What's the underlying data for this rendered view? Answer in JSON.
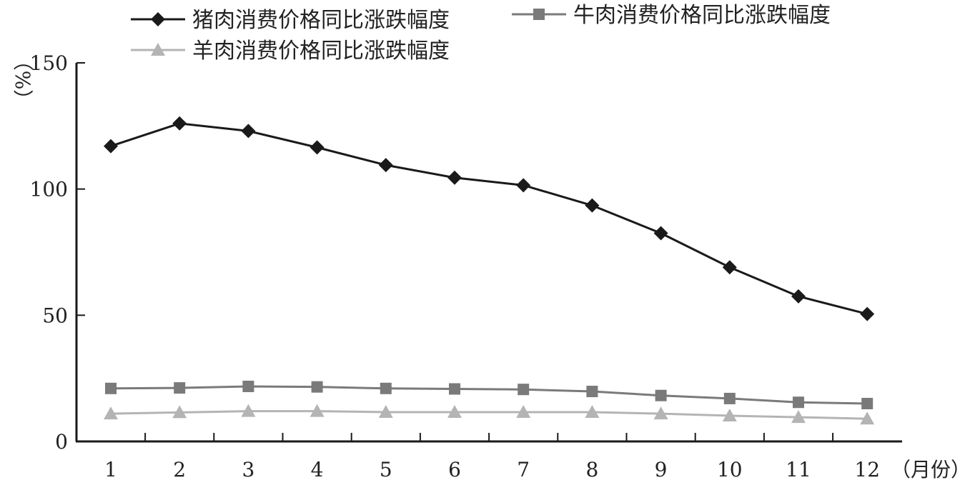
{
  "chart_data": {
    "type": "line",
    "title": "",
    "xlabel": "（月份）",
    "ylabel": "（%）",
    "ylim": [
      0,
      150
    ],
    "yticks": [
      0,
      50,
      100,
      150
    ],
    "categories": [
      "1",
      "2",
      "3",
      "4",
      "5",
      "6",
      "7",
      "8",
      "9",
      "10",
      "11",
      "12"
    ],
    "legend_position": "top-left",
    "grid": false,
    "series": [
      {
        "name": "猪肉消费价格同比涨跌幅度",
        "marker": "diamond",
        "color": "#1a1a1a",
        "values": [
          117,
          126,
          123,
          116.5,
          109.5,
          104.5,
          101.5,
          93.5,
          82.5,
          69,
          57.5,
          50.5
        ]
      },
      {
        "name": "牛肉消费价格同比涨跌幅度",
        "marker": "square",
        "color": "#7a7a7a",
        "values": [
          21,
          21.2,
          21.8,
          21.6,
          21,
          20.8,
          20.6,
          19.8,
          18.2,
          17,
          15.5,
          15
        ]
      },
      {
        "name": "羊肉消费价格同比涨跌幅度",
        "marker": "triangle",
        "color": "#b4b4b4",
        "values": [
          11,
          11.5,
          12,
          12,
          11.6,
          11.6,
          11.6,
          11.6,
          11,
          10.2,
          9.6,
          9
        ]
      }
    ]
  }
}
